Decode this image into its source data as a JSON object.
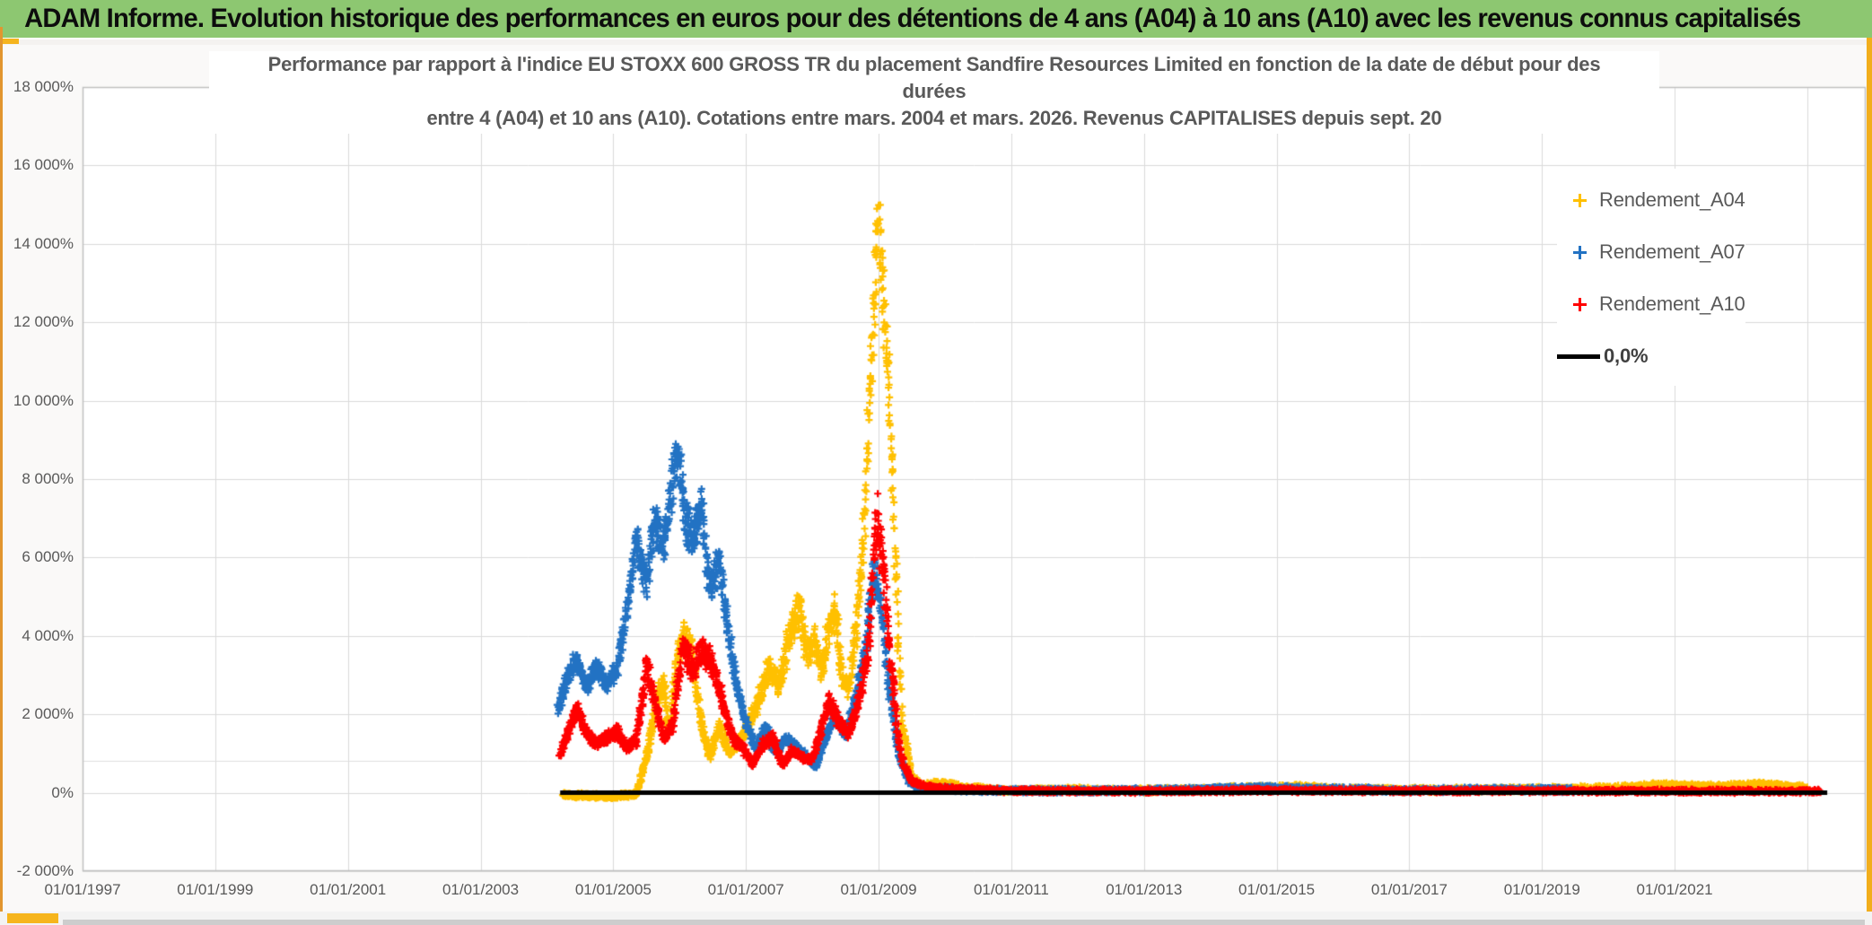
{
  "page": {
    "header_title": "ADAM Informe. Evolution historique des performances en euros pour des détentions de 4 ans (A04) à 10 ans (A10) avec les revenus connus capitalisés"
  },
  "chart": {
    "title_lines": [
      "Performance par rapport à l'indice EU STOXX 600 GROSS TR  du placement Sandfire Resources Limited en fonction de la date de début pour des",
      "durées",
      "entre 4 (A04) et 10 ans (A10). Cotations entre mars. 2004 et mars. 2026. Revenus CAPITALISES depuis sept. 20"
    ],
    "legend": [
      {
        "label": "Rendement_A04",
        "marker": "plus",
        "color": "#FFC000"
      },
      {
        "label": "Rendement_A07",
        "marker": "plus",
        "color": "#2272C3"
      },
      {
        "label": "Rendement_A10",
        "marker": "plus",
        "color": "#FF0000"
      },
      {
        "label": "0,0%",
        "marker": "line",
        "color": "#000000"
      }
    ],
    "y_axis_ticks": [
      {
        "label": "18 000%",
        "value": 18000
      },
      {
        "label": "16 000%",
        "value": 16000
      },
      {
        "label": "14 000%",
        "value": 14000
      },
      {
        "label": "12 000%",
        "value": 12000
      },
      {
        "label": "10 000%",
        "value": 10000
      },
      {
        "label": "8 000%",
        "value": 8000
      },
      {
        "label": "6 000%",
        "value": 6000
      },
      {
        "label": "4 000%",
        "value": 4000
      },
      {
        "label": "2 000%",
        "value": 2000
      },
      {
        "label": "0%",
        "value": 0
      },
      {
        "label": "-2 000%",
        "value": -2000
      }
    ],
    "x_axis_ticks": [
      {
        "label": "01/01/1997",
        "year": 1997
      },
      {
        "label": "01/01/1999",
        "year": 1999
      },
      {
        "label": "01/01/2001",
        "year": 2001
      },
      {
        "label": "01/01/2003",
        "year": 2003
      },
      {
        "label": "01/01/2005",
        "year": 2005
      },
      {
        "label": "01/01/2007",
        "year": 2007
      },
      {
        "label": "01/01/2009",
        "year": 2009
      },
      {
        "label": "01/01/2011",
        "year": 2011
      },
      {
        "label": "01/01/2013",
        "year": 2013
      },
      {
        "label": "01/01/2015",
        "year": 2015
      },
      {
        "label": "01/01/2017",
        "year": 2017
      },
      {
        "label": "01/01/2019",
        "year": 2019
      },
      {
        "label": "01/01/2021",
        "year": 2021
      }
    ]
  },
  "chart_data": {
    "type": "scatter",
    "title": "Performance par rapport à l'indice EU STOXX 600 GROSS TR du placement Sandfire Resources Limited en fonction de la date de début pour des durées entre 4 (A04) et 10 ans (A10). Cotations entre mars. 2004 et mars. 2026. Revenus CAPITALISES depuis sept. 20",
    "x_range": [
      1997.0,
      2023.88
    ],
    "y_range": [
      -2000,
      18000
    ],
    "grid": true,
    "legend_position": "right-top",
    "x_gridline_step_years": 2,
    "y_gridline_step_pct": 2000,
    "seed": 1234,
    "marker": "plus",
    "series": [
      {
        "name": "Rendement_A04",
        "color": "#FFC000",
        "noise_frac": 0.13,
        "noise_min": 70,
        "tail_from": 2009.6,
        "anchors": [
          [
            2004.25,
            -60
          ],
          [
            2004.7,
            -80
          ],
          [
            2005.0,
            -90
          ],
          [
            2005.35,
            -40
          ],
          [
            2005.5,
            900
          ],
          [
            2005.65,
            2300
          ],
          [
            2005.76,
            2800
          ],
          [
            2005.84,
            1500
          ],
          [
            2005.95,
            3200
          ],
          [
            2006.05,
            4000
          ],
          [
            2006.18,
            3700
          ],
          [
            2006.3,
            2000
          ],
          [
            2006.45,
            900
          ],
          [
            2006.6,
            1700
          ],
          [
            2006.75,
            1000
          ],
          [
            2006.9,
            1300
          ],
          [
            2007.05,
            1800
          ],
          [
            2007.2,
            2400
          ],
          [
            2007.35,
            3200
          ],
          [
            2007.5,
            2700
          ],
          [
            2007.65,
            4000
          ],
          [
            2007.8,
            4700
          ],
          [
            2007.92,
            3600
          ],
          [
            2008.05,
            3800
          ],
          [
            2008.15,
            3100
          ],
          [
            2008.25,
            4200
          ],
          [
            2008.35,
            4600
          ],
          [
            2008.45,
            3000
          ],
          [
            2008.55,
            2600
          ],
          [
            2008.62,
            3600
          ],
          [
            2008.7,
            4800
          ],
          [
            2008.8,
            7500
          ],
          [
            2008.9,
            11500
          ],
          [
            2009.0,
            14800
          ],
          [
            2009.06,
            13000
          ],
          [
            2009.15,
            10500
          ],
          [
            2009.25,
            6000
          ],
          [
            2009.35,
            1800
          ],
          [
            2009.5,
            400
          ],
          [
            2009.65,
            180
          ],
          [
            2009.9,
            260
          ],
          [
            2010.3,
            140
          ],
          [
            2011,
            60
          ],
          [
            2012,
            80
          ],
          [
            2013,
            60
          ],
          [
            2014,
            100
          ],
          [
            2015.3,
            160
          ],
          [
            2016,
            90
          ],
          [
            2017,
            70
          ],
          [
            2018,
            80
          ],
          [
            2019,
            100
          ],
          [
            2020,
            120
          ],
          [
            2020.8,
            200
          ],
          [
            2021.6,
            160
          ],
          [
            2022.3,
            220
          ],
          [
            2023.0,
            130
          ]
        ]
      },
      {
        "name": "Rendement_A07",
        "color": "#2272C3",
        "noise_frac": 0.09,
        "noise_min": 70,
        "tail_from": 2009.6,
        "anchors": [
          [
            2004.17,
            2100
          ],
          [
            2004.3,
            2900
          ],
          [
            2004.45,
            3400
          ],
          [
            2004.6,
            2700
          ],
          [
            2004.75,
            3200
          ],
          [
            2004.9,
            2800
          ],
          [
            2005.05,
            3100
          ],
          [
            2005.2,
            4600
          ],
          [
            2005.35,
            6500
          ],
          [
            2005.5,
            5300
          ],
          [
            2005.62,
            7000
          ],
          [
            2005.75,
            6200
          ],
          [
            2005.88,
            7800
          ],
          [
            2005.97,
            8700
          ],
          [
            2006.08,
            7000
          ],
          [
            2006.2,
            6500
          ],
          [
            2006.33,
            7200
          ],
          [
            2006.45,
            5200
          ],
          [
            2006.6,
            5900
          ],
          [
            2006.72,
            4300
          ],
          [
            2006.85,
            2800
          ],
          [
            2007.0,
            1800
          ],
          [
            2007.15,
            1100
          ],
          [
            2007.3,
            1700
          ],
          [
            2007.45,
            1000
          ],
          [
            2007.6,
            1400
          ],
          [
            2007.75,
            1200
          ],
          [
            2007.9,
            950
          ],
          [
            2008.05,
            650
          ],
          [
            2008.2,
            1400
          ],
          [
            2008.35,
            2000
          ],
          [
            2008.5,
            1400
          ],
          [
            2008.65,
            2400
          ],
          [
            2008.8,
            3600
          ],
          [
            2008.93,
            5800
          ],
          [
            2009.03,
            4800
          ],
          [
            2009.15,
            2800
          ],
          [
            2009.3,
            1000
          ],
          [
            2009.45,
            300
          ],
          [
            2009.6,
            130
          ],
          [
            2010.5,
            60
          ],
          [
            2012,
            50
          ],
          [
            2013.5,
            70
          ],
          [
            2014.8,
            140
          ],
          [
            2015.5,
            100
          ],
          [
            2017,
            60
          ],
          [
            2018.5,
            90
          ],
          [
            2019.5,
            70
          ]
        ]
      },
      {
        "name": "Rendement_A10",
        "color": "#FF0000",
        "noise_frac": 0.12,
        "noise_min": 60,
        "tail_from": 2009.6,
        "anchors": [
          [
            2004.2,
            950
          ],
          [
            2004.35,
            1700
          ],
          [
            2004.45,
            2150
          ],
          [
            2004.6,
            1500
          ],
          [
            2004.75,
            1250
          ],
          [
            2004.9,
            1400
          ],
          [
            2005.05,
            1550
          ],
          [
            2005.2,
            1150
          ],
          [
            2005.35,
            1300
          ],
          [
            2005.5,
            3300
          ],
          [
            2005.6,
            2500
          ],
          [
            2005.76,
            1400
          ],
          [
            2005.9,
            1700
          ],
          [
            2006.05,
            3800
          ],
          [
            2006.2,
            3100
          ],
          [
            2006.35,
            3700
          ],
          [
            2006.5,
            3200
          ],
          [
            2006.65,
            2300
          ],
          [
            2006.8,
            1400
          ],
          [
            2006.95,
            1150
          ],
          [
            2007.1,
            750
          ],
          [
            2007.25,
            1200
          ],
          [
            2007.4,
            1450
          ],
          [
            2007.55,
            700
          ],
          [
            2007.7,
            1100
          ],
          [
            2007.85,
            900
          ],
          [
            2008.0,
            850
          ],
          [
            2008.1,
            1400
          ],
          [
            2008.25,
            2350
          ],
          [
            2008.4,
            1800
          ],
          [
            2008.55,
            1500
          ],
          [
            2008.7,
            2300
          ],
          [
            2008.85,
            3800
          ],
          [
            2008.97,
            7000
          ],
          [
            2009.07,
            5800
          ],
          [
            2009.17,
            3600
          ],
          [
            2009.3,
            1300
          ],
          [
            2009.38,
            700
          ],
          [
            2009.5,
            300
          ],
          [
            2009.7,
            150
          ],
          [
            2010.2,
            100
          ],
          [
            2011,
            50
          ],
          [
            2013,
            40
          ],
          [
            2015,
            60
          ],
          [
            2017,
            50
          ],
          [
            2019,
            45
          ],
          [
            2021,
            40
          ],
          [
            2023.2,
            35
          ]
        ]
      },
      {
        "name": "0,0%",
        "color": "#000000",
        "type": "line",
        "x": [
          2004.2,
          2023.3
        ],
        "y": [
          0,
          0
        ],
        "line_width": 5
      }
    ]
  },
  "style_colors": {
    "header_bg": "#8dc771",
    "accent_orange": "#e2962f",
    "accent_yellow": "#f5b41e",
    "gridline": "#dadada",
    "plot_border": "#c0c0c0",
    "axis_text": "#595959"
  }
}
